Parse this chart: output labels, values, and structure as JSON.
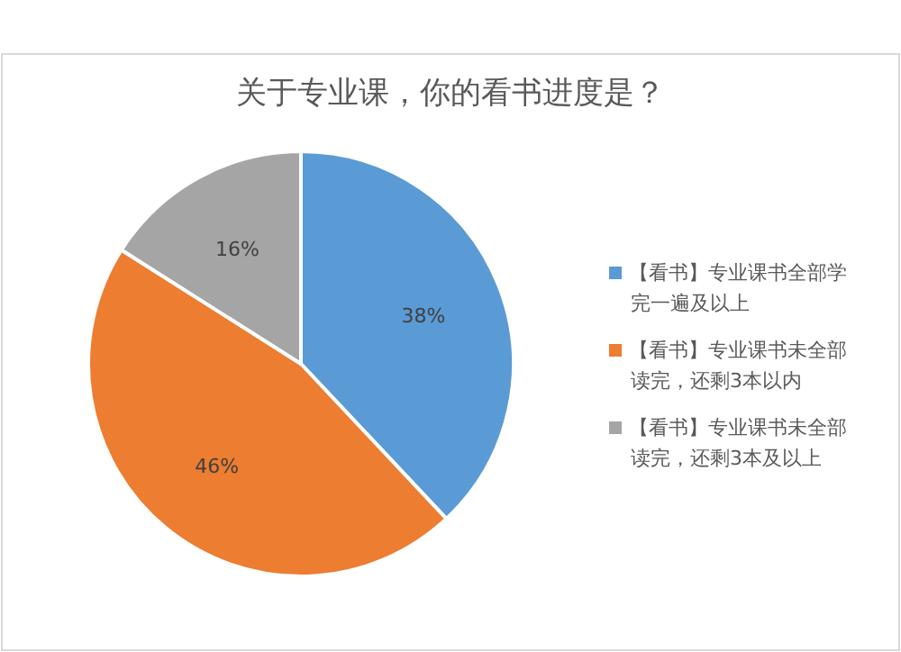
{
  "chart_data": {
    "type": "pie",
    "title": "关于专业课，你的看书进度是？",
    "categories": [
      "【看书】专业课书全部学完一遍及以上",
      "【看书】专业课书未全部读完，还剩3本以内",
      "【看书】专业课书未全部读完，还剩3本及以上"
    ],
    "values": [
      38,
      46,
      16
    ],
    "colors": [
      "#5b9bd5",
      "#ed7d31",
      "#a5a5a5"
    ],
    "value_labels": [
      "38%",
      "46%",
      "16%"
    ],
    "legend": "right"
  }
}
